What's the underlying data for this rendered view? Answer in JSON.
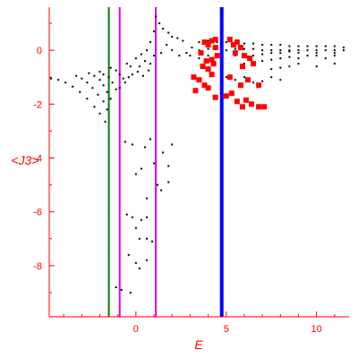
{
  "chart_data": {
    "type": "scatter",
    "title": "",
    "xlabel": "E",
    "ylabel": "<J3>",
    "xlim": [
      -4.8,
      11.8
    ],
    "ylim": [
      -9.9,
      1.6
    ],
    "x_ticks": [
      0,
      5,
      10
    ],
    "y_ticks": [
      0,
      -2,
      -4,
      -6,
      -8
    ],
    "grid": false,
    "legend": "none",
    "colors": {
      "axis": "#ff0000",
      "black_points": "#000000",
      "red_markers": "#ff0000",
      "line_green": "#008000",
      "line_magenta": "#e000e0",
      "line_blue": "#0000ff"
    },
    "vertical_lines": [
      {
        "x": -1.5,
        "color": "green"
      },
      {
        "x": -0.9,
        "color": "magenta"
      },
      {
        "x": 1.1,
        "color": "magenta"
      },
      {
        "x": 4.75,
        "color": "blue"
      }
    ],
    "series": [
      {
        "marker": "black-dot",
        "points": [
          [
            -4.7,
            -1.05
          ],
          [
            -4.3,
            -1.1
          ],
          [
            -3.9,
            -1.2
          ],
          [
            -3.5,
            -1.35
          ],
          [
            -3.1,
            -1.55
          ],
          [
            -2.7,
            -1.8
          ],
          [
            -2.3,
            -2.1
          ],
          [
            -2.0,
            -2.35
          ],
          [
            -1.7,
            -2.65
          ],
          [
            -3.3,
            -0.95
          ],
          [
            -3.0,
            -1.05
          ],
          [
            -2.7,
            -1.2
          ],
          [
            -2.4,
            -1.4
          ],
          [
            -2.1,
            -1.65
          ],
          [
            -1.8,
            -1.9
          ],
          [
            -1.6,
            -2.2
          ],
          [
            -2.6,
            -0.85
          ],
          [
            -2.3,
            -0.95
          ],
          [
            -2.0,
            -1.1
          ],
          [
            -1.8,
            -1.3
          ],
          [
            -1.6,
            -1.55
          ],
          [
            -1.4,
            -1.8
          ],
          [
            -2.0,
            -0.8
          ],
          [
            -1.8,
            -0.9
          ],
          [
            -1.5,
            -1.0
          ],
          [
            -1.3,
            -1.2
          ],
          [
            -1.1,
            -1.45
          ],
          [
            -1.4,
            -0.65
          ],
          [
            -1.1,
            -0.75
          ],
          [
            -0.9,
            -0.9
          ],
          [
            -0.7,
            -1.05
          ],
          [
            -0.5,
            -0.5
          ],
          [
            -0.3,
            -0.6
          ],
          [
            0.0,
            -0.3
          ],
          [
            0.3,
            -0.15
          ],
          [
            0.6,
            0.0
          ],
          [
            0.8,
            0.3
          ],
          [
            1.0,
            0.7
          ],
          [
            1.1,
            1.25
          ],
          [
            1.3,
            1.0
          ],
          [
            1.5,
            0.8
          ],
          [
            1.8,
            0.65
          ],
          [
            2.0,
            0.5
          ],
          [
            2.3,
            0.45
          ],
          [
            2.6,
            0.35
          ],
          [
            0.2,
            -0.6
          ],
          [
            0.5,
            -0.4
          ],
          [
            0.8,
            -0.5
          ],
          [
            1.0,
            -0.2
          ],
          [
            1.4,
            -0.1
          ],
          [
            1.7,
            0.2
          ],
          [
            2.0,
            0.0
          ],
          [
            2.4,
            -0.2
          ],
          [
            2.8,
            -0.1
          ],
          [
            3.1,
            0.1
          ],
          [
            -0.2,
            -0.9
          ],
          [
            0.1,
            -0.8
          ],
          [
            0.4,
            -0.95
          ],
          [
            0.7,
            -0.75
          ],
          [
            -0.6,
            -1.2
          ],
          [
            -0.9,
            -1.4
          ],
          [
            -0.4,
            -1.0
          ],
          [
            3.5,
            0.3
          ],
          [
            4.0,
            0.35
          ],
          [
            4.5,
            0.3
          ],
          [
            5.0,
            0.3
          ],
          [
            5.5,
            0.3
          ],
          [
            6.0,
            0.25
          ],
          [
            6.5,
            0.25
          ],
          [
            7.0,
            0.2
          ],
          [
            7.5,
            0.2
          ],
          [
            8.0,
            0.2
          ],
          [
            8.5,
            0.15
          ],
          [
            9.0,
            0.15
          ],
          [
            9.5,
            0.15
          ],
          [
            10.0,
            0.15
          ],
          [
            10.5,
            0.15
          ],
          [
            11.0,
            0.15
          ],
          [
            11.5,
            0.1
          ],
          [
            3.5,
            0.0
          ],
          [
            4.0,
            0.05
          ],
          [
            4.5,
            0.05
          ],
          [
            5.0,
            0.0
          ],
          [
            5.5,
            0.05
          ],
          [
            6.0,
            0.05
          ],
          [
            6.5,
            0.05
          ],
          [
            7.0,
            0.0
          ],
          [
            7.5,
            0.0
          ],
          [
            8.0,
            0.0
          ],
          [
            8.5,
            0.0
          ],
          [
            9.0,
            0.0
          ],
          [
            9.5,
            0.0
          ],
          [
            10.0,
            0.0
          ],
          [
            10.5,
            0.0
          ],
          [
            11.0,
            0.0
          ],
          [
            11.5,
            0.0
          ],
          [
            3.0,
            -0.2
          ],
          [
            3.5,
            -0.3
          ],
          [
            4.0,
            -0.2
          ],
          [
            5.5,
            -0.2
          ],
          [
            6.0,
            -0.15
          ],
          [
            6.5,
            -0.2
          ],
          [
            7.0,
            -0.15
          ],
          [
            7.5,
            -0.1
          ],
          [
            8.0,
            -0.1
          ],
          [
            8.5,
            -0.05
          ],
          [
            9.0,
            -0.1
          ],
          [
            10.0,
            -0.1
          ],
          [
            11.0,
            -0.1
          ],
          [
            6.0,
            -0.5
          ],
          [
            6.5,
            -0.45
          ],
          [
            7.0,
            -0.4
          ],
          [
            7.5,
            -0.35
          ],
          [
            8.0,
            -0.3
          ],
          [
            8.5,
            -0.25
          ],
          [
            9.0,
            -0.3
          ],
          [
            9.5,
            -0.2
          ],
          [
            10.0,
            -0.2
          ],
          [
            10.5,
            -0.3
          ],
          [
            11.0,
            -0.2
          ],
          [
            7.5,
            -0.7
          ],
          [
            8.0,
            -0.65
          ],
          [
            8.5,
            -0.6
          ],
          [
            9.0,
            -0.5
          ],
          [
            10.0,
            -0.6
          ],
          [
            11.0,
            -0.5
          ],
          [
            5.0,
            -1.0
          ],
          [
            5.5,
            -1.1
          ],
          [
            6.0,
            -1.0
          ],
          [
            6.5,
            -1.2
          ],
          [
            7.0,
            -1.15
          ],
          [
            7.5,
            -1.0
          ],
          [
            8.0,
            -1.1
          ],
          [
            -0.6,
            -3.4
          ],
          [
            -0.2,
            -3.5
          ],
          [
            0.5,
            -3.6
          ],
          [
            0.8,
            -3.3
          ],
          [
            1.5,
            -3.8
          ],
          [
            2.0,
            -3.5
          ],
          [
            0.3,
            -4.4
          ],
          [
            1.0,
            -4.2
          ],
          [
            1.8,
            -4.3
          ],
          [
            0.0,
            -4.6
          ],
          [
            1.2,
            -5.0
          ],
          [
            1.8,
            -4.9
          ],
          [
            1.4,
            -5.2
          ],
          [
            0.6,
            -5.5
          ],
          [
            -0.5,
            -6.1
          ],
          [
            -0.2,
            -6.2
          ],
          [
            0.3,
            -6.3
          ],
          [
            0.6,
            -6.2
          ],
          [
            0.0,
            -6.6
          ],
          [
            0.2,
            -7.0
          ],
          [
            0.6,
            -7.0
          ],
          [
            0.9,
            -7.1
          ],
          [
            -0.4,
            -7.6
          ],
          [
            0.0,
            -7.9
          ],
          [
            0.2,
            -8.1
          ],
          [
            0.6,
            -7.8
          ],
          [
            -1.1,
            -8.8
          ],
          [
            -0.8,
            -8.9
          ],
          [
            -0.3,
            -9.0
          ]
        ]
      },
      {
        "marker": "red-square",
        "points": [
          [
            3.6,
            -0.1
          ],
          [
            3.8,
            0.3
          ],
          [
            4.0,
            0.2
          ],
          [
            4.2,
            0.35
          ],
          [
            4.4,
            0.4
          ],
          [
            3.9,
            -0.4
          ],
          [
            4.3,
            -0.5
          ],
          [
            4.5,
            -0.2
          ],
          [
            3.7,
            -0.6
          ],
          [
            4.0,
            -0.7
          ],
          [
            4.2,
            -0.35
          ],
          [
            4.4,
            0.1
          ],
          [
            5.2,
            0.4
          ],
          [
            5.4,
            0.2
          ],
          [
            5.6,
            0.3
          ],
          [
            5.5,
            -0.1
          ],
          [
            5.8,
            0.1
          ],
          [
            6.0,
            -0.2
          ],
          [
            6.3,
            -0.3
          ],
          [
            5.9,
            -0.6
          ],
          [
            6.5,
            -0.5
          ],
          [
            3.2,
            -1.0
          ],
          [
            3.5,
            -1.1
          ],
          [
            3.8,
            -1.3
          ],
          [
            4.0,
            -1.4
          ],
          [
            3.3,
            -1.5
          ],
          [
            4.2,
            -0.9
          ],
          [
            5.2,
            -1.0
          ],
          [
            5.8,
            -1.3
          ],
          [
            6.2,
            -1.1
          ],
          [
            6.8,
            -1.3
          ],
          [
            4.4,
            -1.75
          ],
          [
            5.0,
            -1.7
          ],
          [
            5.3,
            -1.6
          ],
          [
            5.6,
            -1.9
          ],
          [
            5.9,
            -2.1
          ],
          [
            6.1,
            -1.85
          ],
          [
            6.4,
            -2.0
          ],
          [
            6.8,
            -2.1
          ],
          [
            7.1,
            -2.1
          ]
        ]
      }
    ]
  }
}
